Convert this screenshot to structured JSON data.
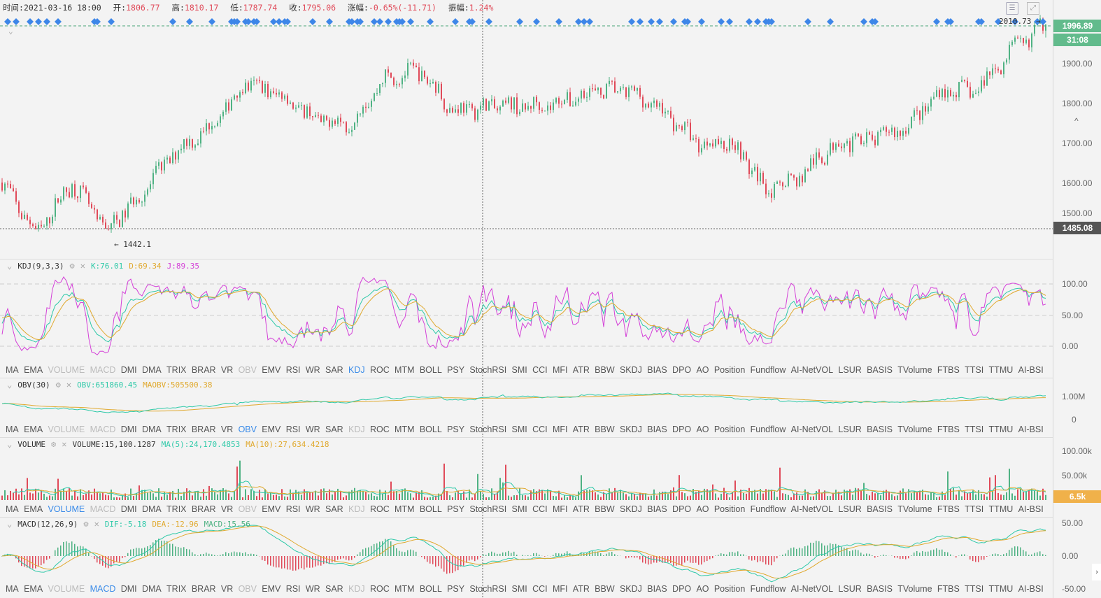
{
  "info": {
    "time_label": "时间:",
    "time": "2021-03-16 18:00",
    "open_label": "开:",
    "open": "1806.77",
    "high_label": "高:",
    "high": "1810.17",
    "low_label": "低:",
    "low": "1787.74",
    "close_label": "收:",
    "close": "1795.06",
    "change_label": "涨幅:",
    "change": "-0.65%(-11.71)",
    "amp_label": "振幅:",
    "amp": "1.24%"
  },
  "colors": {
    "up": "#4fb283",
    "down": "#e04a59",
    "k": "#2ec9a8",
    "d": "#e0a92e",
    "j": "#d43fd8",
    "active_tab": "#3a8be8",
    "last_price_badge": "#62bb8c",
    "crosshair_badge": "#555555",
    "volume_badge": "#f0b14a",
    "signal": "#3d86e8"
  },
  "main": {
    "last_price": "1996.89",
    "countdown": "31:08",
    "crosshair_price": "1485.08",
    "max_label": "2010.73 →",
    "min_label": "← 1442.1",
    "axis_ticks": [
      "1900.00",
      "1800.00",
      "1700.00",
      "1600.00",
      "1500.00"
    ],
    "icons": [
      "calendar-icon",
      "fullscreen-icon"
    ]
  },
  "chart_data": {
    "type": "candlestick",
    "close_keypoints": [
      1600,
      1470,
      1600,
      1480,
      1570,
      1680,
      1740,
      1850,
      1820,
      1760,
      1750,
      1860,
      1880,
      1780,
      1790,
      1790,
      1800,
      1830,
      1830,
      1780,
      1700,
      1700,
      1580,
      1620,
      1700,
      1710,
      1740,
      1830,
      1830,
      1930,
      1997
    ],
    "ylim": [
      1440,
      2010
    ]
  },
  "panes": {
    "kdj": {
      "title": "KDJ(9,3,3)",
      "k": "K:76.01",
      "d": "D:69.34",
      "j": "J:89.35",
      "ticks": [
        "100.00",
        "50.00",
        "0.00"
      ]
    },
    "obv": {
      "title": "OBV(30)",
      "obv": "OBV:651860.45",
      "maobv": "MAOBV:505500.38",
      "ticks": [
        "1.00M",
        "0"
      ]
    },
    "volume": {
      "title": "VOLUME",
      "volume": "VOLUME:15,100.1287",
      "ma5": "MA(5):24,170.4853",
      "ma10": "MA(10):27,634.4218",
      "ticks": [
        "100.00k",
        "50.00k"
      ],
      "badge": "6.5k"
    },
    "macd": {
      "title": "MACD(12,26,9)",
      "dif": "DIF:-5.18",
      "dea": "DEA:-12.96",
      "macd": "MACD:15.56",
      "ticks": [
        "50.00",
        "0.00",
        "-50.00"
      ]
    }
  },
  "indicator_tabs": [
    "MA",
    "EMA",
    "VOLUME",
    "MACD",
    "DMI",
    "DMA",
    "TRIX",
    "BRAR",
    "VR",
    "OBV",
    "EMV",
    "RSI",
    "WR",
    "SAR",
    "KDJ",
    "ROC",
    "MTM",
    "BOLL",
    "PSY",
    "StochRSI",
    "SMI",
    "CCI",
    "MFI",
    "ATR",
    "BBW",
    "SKDJ",
    "BIAS",
    "DPO",
    "AO",
    "Position",
    "Fundflow",
    "AI-NetVOL",
    "LSUR",
    "BASIS",
    "TVolume",
    "FTBS",
    "TTSI",
    "TTMU",
    "AI-BSI"
  ],
  "tab_rows": [
    {
      "active": "KDJ",
      "disabled": [
        "VOLUME",
        "MACD",
        "OBV"
      ]
    },
    {
      "active": "OBV",
      "disabled": [
        "VOLUME",
        "MACD",
        "KDJ"
      ]
    },
    {
      "active": "VOLUME",
      "disabled": [
        "MACD",
        "OBV",
        "KDJ"
      ]
    },
    {
      "active": "MACD",
      "disabled": [
        "VOLUME",
        "OBV",
        "KDJ"
      ]
    }
  ]
}
